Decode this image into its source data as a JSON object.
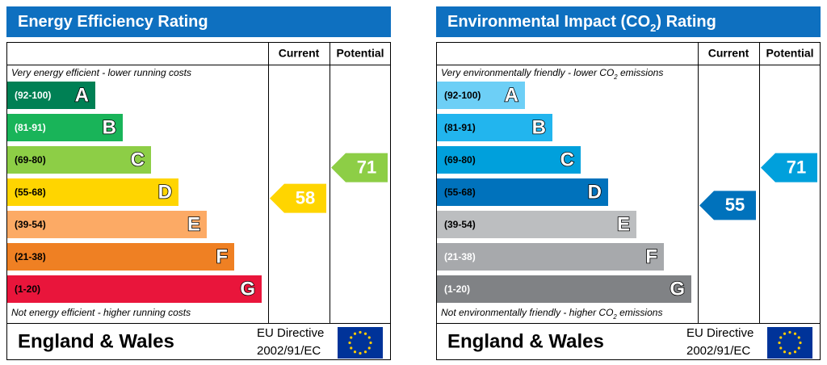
{
  "panels": [
    {
      "title": [
        "Energy Efficiency Rating"
      ],
      "columns": [
        "Current",
        "Potential"
      ],
      "top_note": [
        "Very energy efficient - lower running costs"
      ],
      "bottom_note": [
        "Not energy efficient - higher running costs"
      ],
      "bands": [
        {
          "range": "(92-100)",
          "letter": "A",
          "color": "#008054",
          "label_color": "#ffffff"
        },
        {
          "range": "(81-91)",
          "letter": "B",
          "color": "#19b459",
          "label_color": "#ffffff"
        },
        {
          "range": "(69-80)",
          "letter": "C",
          "color": "#8dce46",
          "label_color": "#000000"
        },
        {
          "range": "(55-68)",
          "letter": "D",
          "color": "#ffd500",
          "label_color": "#000000"
        },
        {
          "range": "(39-54)",
          "letter": "E",
          "color": "#fcaa65",
          "label_color": "#000000"
        },
        {
          "range": "(21-38)",
          "letter": "F",
          "color": "#ef8023",
          "label_color": "#000000"
        },
        {
          "range": "(1-20)",
          "letter": "G",
          "color": "#e9153b",
          "label_color": "#000000"
        }
      ],
      "current": 58,
      "potential": 71,
      "footer": {
        "region": "England & Wales",
        "directive": [
          "EU Directive",
          "2002/91/EC"
        ]
      }
    },
    {
      "title": [
        "Environmental Impact (CO",
        "2",
        ") Rating"
      ],
      "columns": [
        "Current",
        "Potential"
      ],
      "top_note": [
        "Very environmentally friendly - lower CO",
        "2",
        " emissions"
      ],
      "bottom_note": [
        "Not environmentally friendly - higher CO",
        "2",
        " emissions"
      ],
      "bands": [
        {
          "range": "(92-100)",
          "letter": "A",
          "color": "#6dcff6",
          "label_color": "#000000"
        },
        {
          "range": "(81-91)",
          "letter": "B",
          "color": "#22b5ee",
          "label_color": "#000000"
        },
        {
          "range": "(69-80)",
          "letter": "C",
          "color": "#00a0dc",
          "label_color": "#000000"
        },
        {
          "range": "(55-68)",
          "letter": "D",
          "color": "#0072bc",
          "label_color": "#000000"
        },
        {
          "range": "(39-54)",
          "letter": "E",
          "color": "#bcbec0",
          "label_color": "#000000"
        },
        {
          "range": "(21-38)",
          "letter": "F",
          "color": "#a7a9ac",
          "label_color": "#ffffff"
        },
        {
          "range": "(1-20)",
          "letter": "G",
          "color": "#808285",
          "label_color": "#ffffff"
        }
      ],
      "current": 55,
      "potential": 71,
      "footer": {
        "region": "England & Wales",
        "directive": [
          "EU Directive",
          "2002/91/EC"
        ]
      }
    }
  ]
}
